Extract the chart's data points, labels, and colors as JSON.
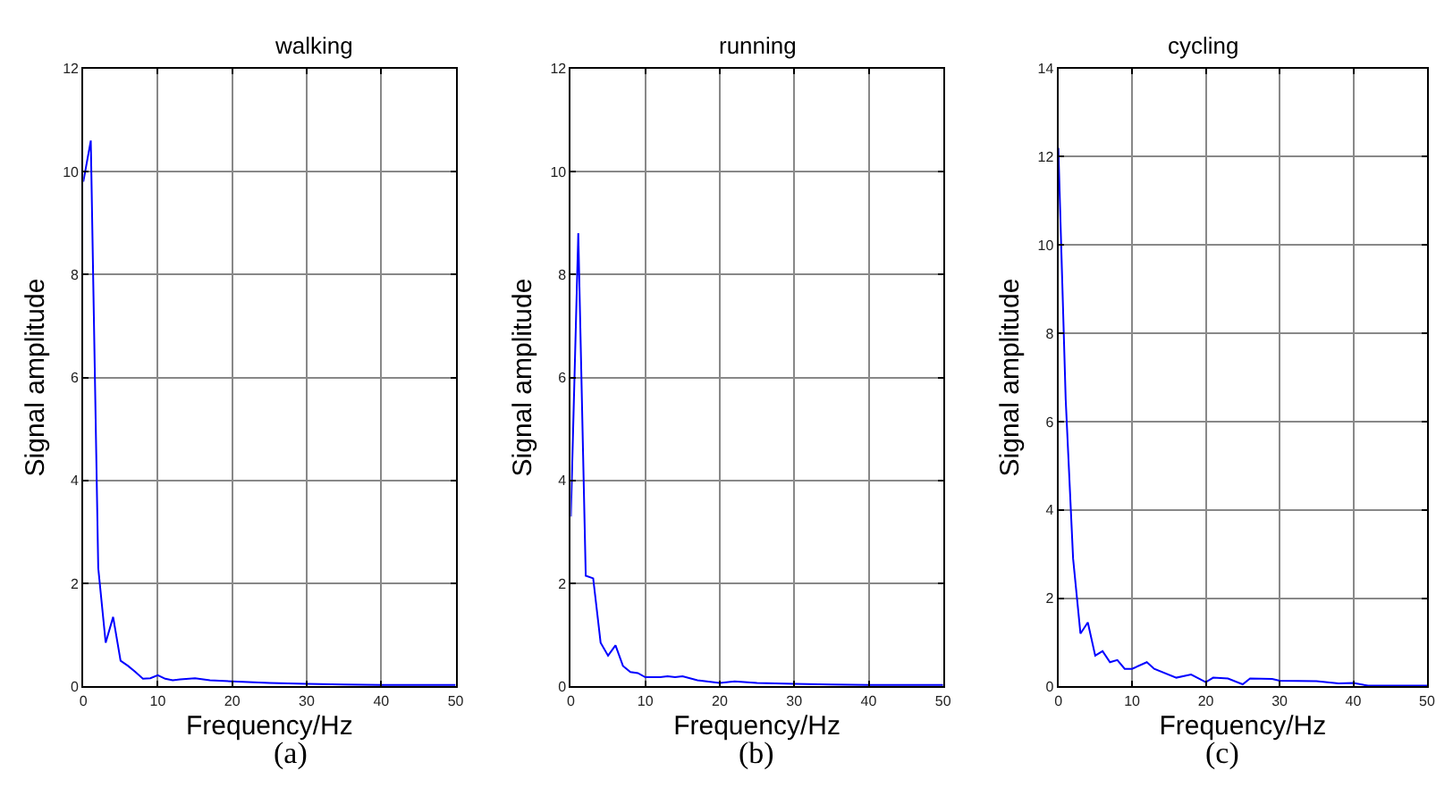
{
  "chart_data": [
    {
      "type": "line",
      "title": "walking",
      "xlabel": "Frequency/Hz",
      "ylabel": "Signal amplitude",
      "annotations": [
        "(a)"
      ],
      "x": [
        0,
        1,
        2,
        3,
        4,
        5,
        6,
        7,
        8,
        9,
        10,
        11,
        12,
        13,
        15,
        17,
        20,
        25,
        30,
        35,
        40,
        45,
        50
      ],
      "series": [
        {
          "color": "#0000ff",
          "values": [
            9.8,
            10.6,
            2.3,
            0.85,
            1.35,
            0.5,
            0.4,
            0.28,
            0.15,
            0.16,
            0.22,
            0.15,
            0.12,
            0.14,
            0.16,
            0.12,
            0.1,
            0.07,
            0.05,
            0.04,
            0.03,
            0.03,
            0.03
          ]
        }
      ],
      "xlim": [
        0,
        50
      ],
      "xticks": [
        0,
        10,
        20,
        30,
        40,
        50
      ],
      "ylim": [
        0,
        12
      ],
      "yticks": [
        0,
        2,
        4,
        6,
        8,
        10,
        12
      ],
      "grid": true,
      "marker": "none",
      "line_style": "solid"
    },
    {
      "type": "line",
      "title": "running",
      "xlabel": "Frequency/Hz",
      "ylabel": "Signal amplitude",
      "annotations": [
        "(b)"
      ],
      "x": [
        0,
        1,
        2,
        3,
        4,
        5,
        6,
        7,
        8,
        9,
        10,
        12,
        13,
        14,
        15,
        17,
        20,
        22,
        25,
        30,
        35,
        40,
        45,
        50
      ],
      "series": [
        {
          "color": "#0000ff",
          "values": [
            3.3,
            8.8,
            2.15,
            2.1,
            0.85,
            0.6,
            0.8,
            0.4,
            0.28,
            0.26,
            0.18,
            0.18,
            0.2,
            0.18,
            0.2,
            0.12,
            0.07,
            0.1,
            0.07,
            0.05,
            0.04,
            0.03,
            0.03,
            0.03
          ]
        }
      ],
      "xlim": [
        0,
        50
      ],
      "xticks": [
        0,
        10,
        20,
        30,
        40,
        50
      ],
      "ylim": [
        0,
        12
      ],
      "yticks": [
        0,
        2,
        4,
        6,
        8,
        10,
        12
      ],
      "grid": true,
      "marker": "none",
      "line_style": "solid"
    },
    {
      "type": "line",
      "title": "cycling",
      "xlabel": "Frequency/Hz",
      "ylabel": "Signal amplitude",
      "annotations": [
        "(c)"
      ],
      "x": [
        0,
        1,
        2,
        3,
        4,
        5,
        6,
        7,
        8,
        9,
        10,
        12,
        13,
        16,
        18,
        20,
        21,
        23,
        25,
        26,
        29,
        30,
        35,
        38,
        40,
        42,
        50
      ],
      "series": [
        {
          "color": "#0000ff",
          "values": [
            12.2,
            6.5,
            2.9,
            1.2,
            1.45,
            0.7,
            0.8,
            0.55,
            0.6,
            0.4,
            0.4,
            0.55,
            0.4,
            0.2,
            0.27,
            0.1,
            0.2,
            0.18,
            0.05,
            0.18,
            0.17,
            0.13,
            0.12,
            0.07,
            0.08,
            0.02,
            0.02
          ]
        }
      ],
      "xlim": [
        0,
        50
      ],
      "xticks": [
        0,
        10,
        20,
        30,
        40,
        50
      ],
      "ylim": [
        0,
        14
      ],
      "yticks": [
        0,
        2,
        4,
        6,
        8,
        10,
        12,
        14
      ],
      "grid": true,
      "marker": "none",
      "line_style": "solid"
    }
  ]
}
